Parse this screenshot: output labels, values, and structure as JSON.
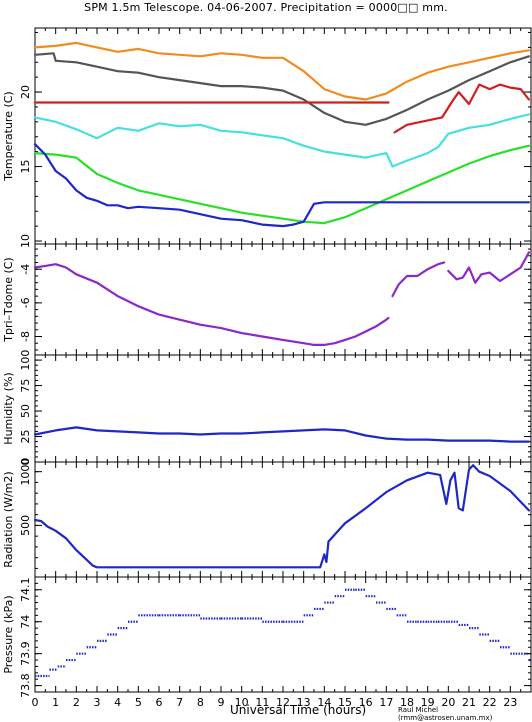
{
  "title": "SPM 1.5m Telescope. 04-06-2007. Precipitation = 0000□□ mm.",
  "credit": "Raul Michel (rmm@astrosen.unam.mx)",
  "chart_data": [
    {
      "type": "line",
      "ylabel": "Temperature (C)",
      "ylim": [
        9.8,
        24.3
      ],
      "yticks": [
        10,
        15,
        20
      ],
      "series": [
        {
          "color": "#f08c1e",
          "x": [
            0,
            1,
            2,
            3,
            4,
            5,
            6,
            7,
            8,
            9,
            10,
            11,
            12,
            13,
            14,
            15,
            16,
            17,
            18,
            19,
            20,
            21,
            22,
            23,
            23.9
          ],
          "y": [
            23.0,
            23.1,
            23.3,
            23.0,
            22.7,
            22.9,
            22.6,
            22.5,
            22.4,
            22.6,
            22.5,
            22.3,
            22.3,
            21.4,
            20.2,
            19.7,
            19.5,
            19.9,
            20.7,
            21.3,
            21.7,
            22.0,
            22.3,
            22.6,
            22.8
          ]
        },
        {
          "color": "#555555",
          "x": [
            0,
            0.9,
            1,
            2,
            3,
            4,
            5,
            6,
            7,
            8,
            9,
            10,
            11,
            12,
            13,
            14,
            15,
            16,
            17,
            18,
            19,
            20,
            21,
            22,
            23,
            23.9
          ],
          "y": [
            22.5,
            22.6,
            22.1,
            22.0,
            21.7,
            21.4,
            21.3,
            21.0,
            20.8,
            20.6,
            20.4,
            20.4,
            20.3,
            20.1,
            19.5,
            18.6,
            18.0,
            17.8,
            18.2,
            18.8,
            19.5,
            20.1,
            20.8,
            21.4,
            22.0,
            22.4
          ]
        },
        {
          "color": "#d21e1e",
          "x": [
            0,
            17.1
          ],
          "y": [
            19.3,
            19.3
          ]
        },
        {
          "color": "#d21e1e",
          "x": [
            17.4,
            18,
            19,
            19.7,
            20.2,
            20.5,
            21,
            21.5,
            22,
            22.5,
            23,
            23.5,
            23.9
          ],
          "y": [
            17.3,
            17.8,
            18.1,
            18.3,
            19.4,
            20.0,
            19.2,
            20.5,
            20.2,
            20.5,
            20.3,
            20.2,
            19.5
          ]
        },
        {
          "color": "#46e0e0",
          "x": [
            0,
            1,
            2,
            3,
            4,
            5,
            6,
            7,
            8,
            9,
            10,
            11,
            12,
            13,
            14,
            15,
            16,
            17,
            17.3,
            18,
            19,
            19.5,
            20,
            21,
            22,
            23,
            23.9
          ],
          "y": [
            18.3,
            18.0,
            17.5,
            16.9,
            17.6,
            17.4,
            17.9,
            17.7,
            17.8,
            17.4,
            17.3,
            17.1,
            16.9,
            16.4,
            16.0,
            15.8,
            15.6,
            15.9,
            15.0,
            15.4,
            15.9,
            16.3,
            17.2,
            17.6,
            17.8,
            18.2,
            18.5
          ]
        },
        {
          "color": "#28e028",
          "x": [
            0,
            1,
            2,
            3,
            4,
            5,
            6,
            7,
            8,
            9,
            10,
            11,
            12,
            13,
            14,
            15,
            16,
            17,
            18,
            19,
            20,
            21,
            22,
            23,
            23.9
          ],
          "y": [
            15.9,
            15.8,
            15.6,
            14.5,
            13.9,
            13.4,
            13.1,
            12.8,
            12.5,
            12.2,
            11.9,
            11.7,
            11.5,
            11.3,
            11.2,
            11.6,
            12.2,
            12.8,
            13.4,
            14.0,
            14.6,
            15.2,
            15.7,
            16.1,
            16.4
          ]
        },
        {
          "color": "#1e28c8",
          "x": [
            0,
            0.5,
            1,
            1.5,
            2,
            2.5,
            3,
            3.5,
            4,
            4.5,
            5,
            6,
            7,
            8,
            9,
            10,
            11,
            12,
            12.5,
            13,
            13.5,
            14,
            15,
            16,
            17,
            18,
            19,
            20,
            21,
            22,
            23,
            23.9
          ],
          "y": [
            16.5,
            15.8,
            14.7,
            14.2,
            13.4,
            12.9,
            12.7,
            12.4,
            12.4,
            12.2,
            12.3,
            12.2,
            12.1,
            11.8,
            11.5,
            11.4,
            11.1,
            11.0,
            11.1,
            11.3,
            12.5,
            12.6,
            12.6,
            12.6,
            12.6,
            12.6,
            12.6,
            12.6,
            12.6,
            12.6,
            12.6,
            12.6
          ]
        }
      ]
    },
    {
      "type": "line",
      "ylabel": "Tpri–Tdome (C)",
      "ylim": [
        -9.1,
        -2.5
      ],
      "yticks": [
        -8,
        -6,
        -4
      ],
      "series": [
        {
          "color": "#8c28c8",
          "x": [
            0,
            0.5,
            1,
            1.5,
            2,
            3,
            4,
            5,
            6,
            7,
            8,
            9,
            10,
            11,
            12,
            13,
            13.5,
            14,
            14.5,
            15,
            15.5,
            16,
            16.5,
            17,
            17.1
          ],
          "y": [
            -3.9,
            -3.8,
            -3.7,
            -3.9,
            -4.3,
            -4.8,
            -5.6,
            -6.2,
            -6.7,
            -7.0,
            -7.3,
            -7.5,
            -7.8,
            -8.0,
            -8.2,
            -8.4,
            -8.5,
            -8.5,
            -8.4,
            -8.2,
            -8.0,
            -7.7,
            -7.4,
            -7.0,
            -6.9
          ]
        },
        {
          "color": "#8c28c8",
          "x": [
            17.3,
            17.6,
            18,
            18.5,
            19,
            19.5,
            19.8
          ],
          "y": [
            -5.6,
            -4.9,
            -4.4,
            -4.4,
            -4.0,
            -3.7,
            -3.6
          ]
        },
        {
          "color": "#8c28c8",
          "x": [
            20,
            20.4,
            20.7,
            21,
            21.3,
            21.6,
            22,
            22.5,
            23,
            23.5,
            23.9
          ],
          "y": [
            -4.1,
            -4.6,
            -4.5,
            -3.9,
            -4.8,
            -4.3,
            -4.2,
            -4.7,
            -4.3,
            -3.9,
            -3.0
          ]
        }
      ]
    },
    {
      "type": "line",
      "ylabel": "Humidity (%)",
      "ylim": [
        0,
        105
      ],
      "yticks": [
        0,
        25,
        50,
        75,
        100
      ],
      "series": [
        {
          "color": "#1e28c8",
          "x": [
            0,
            1,
            2,
            3,
            4,
            5,
            6,
            7,
            8,
            9,
            10,
            11,
            12,
            13,
            14,
            15,
            16,
            17,
            18,
            19,
            20,
            21,
            22,
            23,
            23.9
          ],
          "y": [
            27,
            31,
            34,
            31,
            30,
            29,
            28,
            28,
            27,
            28,
            28,
            29,
            30,
            31,
            32,
            31,
            26,
            23,
            22,
            22,
            21,
            21,
            21,
            20,
            20
          ]
        }
      ]
    },
    {
      "type": "line",
      "ylabel": "Radiation (W/m2)",
      "ylim": [
        20,
        1090
      ],
      "yticks": [
        500,
        1000
      ],
      "series": [
        {
          "color": "#1e28c8",
          "x": [
            0,
            0.3,
            0.6,
            1,
            1.5,
            2,
            2.5,
            2.8,
            3,
            4,
            5,
            6,
            7,
            8,
            9,
            10,
            11,
            12,
            13,
            13.8,
            14,
            14.1,
            14.2,
            15,
            16,
            17,
            18,
            19,
            19.6,
            19.9,
            20.1,
            20.3,
            20.5,
            20.7,
            21,
            21.2,
            21.5,
            22,
            23,
            23.9
          ],
          "y": [
            550,
            540,
            490,
            450,
            380,
            270,
            180,
            125,
            110,
            110,
            110,
            110,
            110,
            110,
            110,
            110,
            110,
            110,
            110,
            110,
            230,
            160,
            350,
            520,
            660,
            810,
            920,
            990,
            970,
            700,
            920,
            990,
            660,
            640,
            1020,
            1060,
            1000,
            960,
            820,
            640
          ]
        }
      ]
    },
    {
      "type": "scatter",
      "ylabel": "Pressure (kPa)",
      "ylim": [
        73.78,
        74.14
      ],
      "yticks": [
        73.8,
        73.9,
        74,
        74.1
      ],
      "series": [
        {
          "color": "#1e28c8",
          "x": [
            0,
            0.7,
            1.1,
            1.5,
            2,
            2.5,
            3,
            3.5,
            4,
            4.5,
            5,
            6,
            7,
            8,
            9,
            10,
            11,
            12,
            13,
            13.5,
            14,
            14.5,
            15,
            15.5,
            16,
            16.5,
            17,
            17.5,
            18,
            18.5,
            19,
            19.5,
            20,
            20.5,
            21,
            21.5,
            22,
            22.5,
            23,
            23.9
          ],
          "y": [
            73.83,
            73.85,
            73.86,
            73.88,
            73.9,
            73.92,
            73.94,
            73.96,
            73.98,
            74.0,
            74.02,
            74.02,
            74.02,
            74.01,
            74.01,
            74.01,
            74.0,
            74.0,
            74.02,
            74.04,
            74.06,
            74.08,
            74.1,
            74.1,
            74.08,
            74.06,
            74.04,
            74.02,
            74.0,
            74.0,
            74.0,
            74.0,
            74.0,
            73.99,
            73.98,
            73.96,
            73.94,
            73.92,
            73.9,
            73.88
          ]
        }
      ]
    }
  ],
  "xaxis": {
    "label": "Universal Time (hours)",
    "xlim": [
      0,
      24
    ],
    "ticks": [
      "0",
      "1",
      "2",
      "3",
      "4",
      "5",
      "6",
      "7",
      "8",
      "9",
      "10",
      "11",
      "12",
      "13",
      "14",
      "15",
      "16",
      "17",
      "18",
      "19",
      "20",
      "21",
      "22",
      "23"
    ]
  }
}
